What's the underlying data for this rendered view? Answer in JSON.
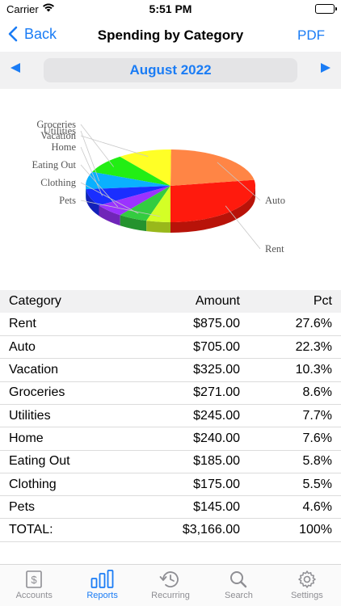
{
  "status": {
    "carrier": "Carrier",
    "time": "5:51 PM"
  },
  "nav": {
    "back_label": "Back",
    "title": "Spending by Category",
    "pdf_label": "PDF"
  },
  "month": {
    "label": "August 2022",
    "prev_icon": "triangle-left-icon",
    "next_icon": "triangle-right-icon"
  },
  "chart_data": {
    "type": "pie",
    "categories": [
      "Rent",
      "Auto",
      "Vacation",
      "Groceries",
      "Utilities",
      "Home",
      "Eating Out",
      "Clothing",
      "Pets"
    ],
    "values": [
      875,
      705,
      325,
      271,
      245,
      240,
      185,
      175,
      145
    ],
    "colors": [
      "#ff1a0d",
      "#ff8545",
      "#ffff26",
      "#22ee14",
      "#0ab0ff",
      "#1a2eff",
      "#9b33ff",
      "#33cc40",
      "#d4ff26"
    ],
    "legend_placement": "leader-lines"
  },
  "table": {
    "headers": {
      "category": "Category",
      "amount": "Amount",
      "pct": "Pct"
    },
    "rows": [
      {
        "category": "Rent",
        "amount": "$875.00",
        "pct": "27.6%"
      },
      {
        "category": "Auto",
        "amount": "$705.00",
        "pct": "22.3%"
      },
      {
        "category": "Vacation",
        "amount": "$325.00",
        "pct": "10.3%"
      },
      {
        "category": "Groceries",
        "amount": "$271.00",
        "pct": "8.6%"
      },
      {
        "category": "Utilities",
        "amount": "$245.00",
        "pct": "7.7%"
      },
      {
        "category": "Home",
        "amount": "$240.00",
        "pct": "7.6%"
      },
      {
        "category": "Eating Out",
        "amount": "$185.00",
        "pct": "5.8%"
      },
      {
        "category": "Clothing",
        "amount": "$175.00",
        "pct": "5.5%"
      },
      {
        "category": "Pets",
        "amount": "$145.00",
        "pct": "4.6%"
      }
    ],
    "total": {
      "category": "TOTAL:",
      "amount": "$3,166.00",
      "pct": "100%"
    }
  },
  "tabs": [
    {
      "label": "Accounts",
      "icon": "dollar-document-icon",
      "active": false
    },
    {
      "label": "Reports",
      "icon": "bar-chart-icon",
      "active": true
    },
    {
      "label": "Recurring",
      "icon": "recurring-clock-icon",
      "active": false
    },
    {
      "label": "Search",
      "icon": "search-icon",
      "active": false
    },
    {
      "label": "Settings",
      "icon": "gear-icon",
      "active": false
    }
  ]
}
